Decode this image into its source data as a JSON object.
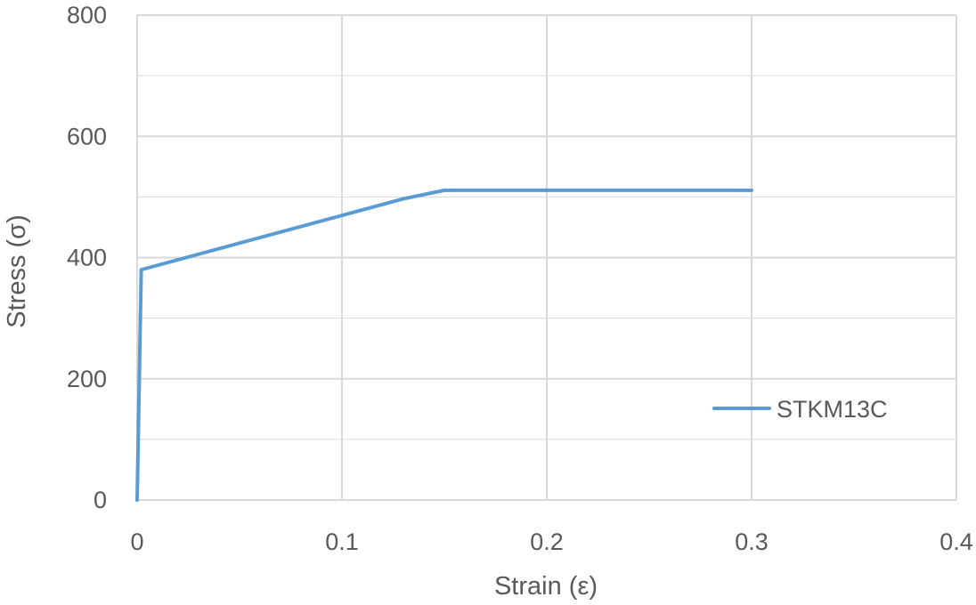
{
  "chart_data": {
    "type": "line",
    "title": "",
    "xlabel": "Strain (ε)",
    "ylabel": "Stress (σ)",
    "xlim": [
      0,
      0.4
    ],
    "ylim": [
      0,
      800
    ],
    "x_ticks": [
      0,
      0.1,
      0.2,
      0.3,
      0.4
    ],
    "x_tick_labels": [
      "0",
      "0.1",
      "0.2",
      "0.3",
      "0.4"
    ],
    "y_ticks": [
      0,
      200,
      400,
      600,
      800
    ],
    "y_tick_labels": [
      "0",
      "200",
      "400",
      "600",
      "800"
    ],
    "y_minor_gridlines": [
      100,
      300,
      500,
      700
    ],
    "grid": true,
    "legend_position": "right",
    "series": [
      {
        "name": "STKM13C",
        "color": "#5B9BD5",
        "points": [
          {
            "x": 0,
            "y": 0
          },
          {
            "x": 0.002,
            "y": 380
          },
          {
            "x": 0.13,
            "y": 497
          },
          {
            "x": 0.15,
            "y": 511
          },
          {
            "x": 0.3,
            "y": 511
          }
        ]
      }
    ]
  },
  "colors": {
    "grid": "#D9D9D9",
    "text": "#595959",
    "series": "#5B9BD5"
  }
}
